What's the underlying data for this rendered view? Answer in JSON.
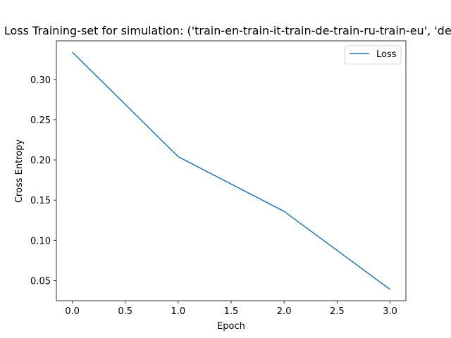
{
  "chart_data": {
    "type": "line",
    "title": "Loss Training-set for simulation: ('train-en-train-it-train-de-train-ru-train-eu', 'dev",
    "xlabel": "Epoch",
    "ylabel": "Cross Entropy",
    "xlim": [
      -0.15,
      3.15
    ],
    "ylim": [
      0.025,
      0.348
    ],
    "x_ticks": [
      0.0,
      0.5,
      1.0,
      1.5,
      2.0,
      2.5,
      3.0
    ],
    "x_tick_labels": [
      "0.0",
      "0.5",
      "1.0",
      "1.5",
      "2.0",
      "2.5",
      "3.0"
    ],
    "y_ticks": [
      0.05,
      0.1,
      0.15,
      0.2,
      0.25,
      0.3
    ],
    "y_tick_labels": [
      "0.05",
      "0.10",
      "0.15",
      "0.20",
      "0.25",
      "0.30"
    ],
    "grid": false,
    "legend_position": "upper right",
    "series": [
      {
        "name": "Loss",
        "color": "#1f77b4",
        "x": [
          0,
          1,
          2,
          3
        ],
        "y": [
          0.334,
          0.204,
          0.136,
          0.039
        ]
      }
    ]
  }
}
